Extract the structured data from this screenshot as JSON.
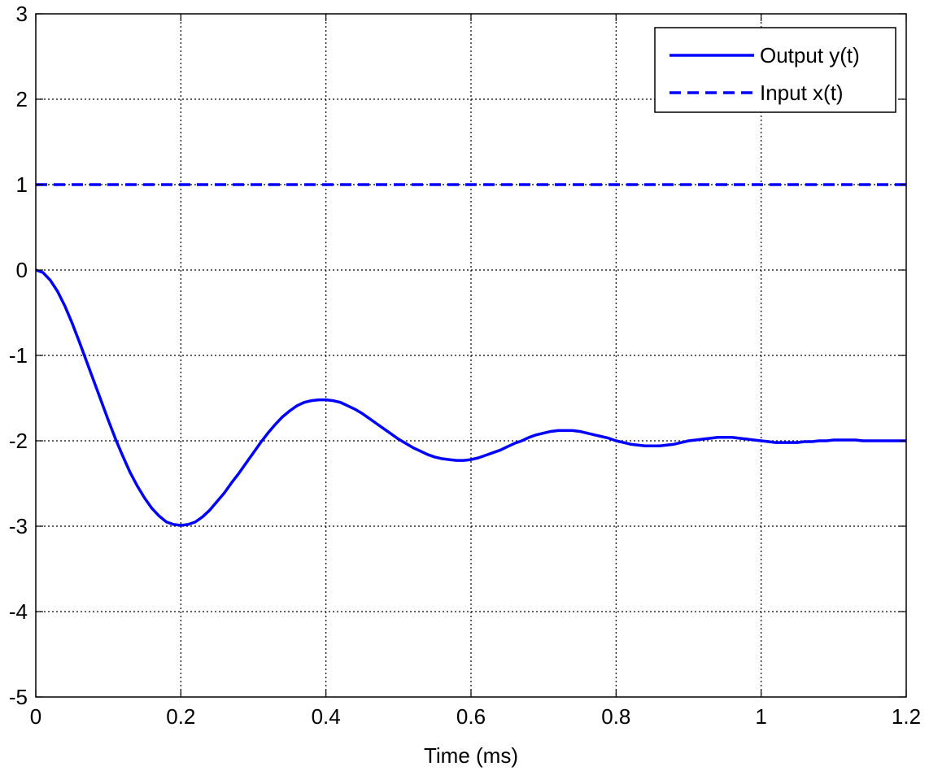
{
  "chart_data": {
    "type": "line",
    "title": "",
    "xlabel": "Time (ms)",
    "ylabel": "",
    "xlim": [
      0,
      1.2
    ],
    "ylim": [
      -5,
      3
    ],
    "xticks": [
      0,
      0.2,
      0.4,
      0.6,
      0.8,
      1,
      1.2
    ],
    "xtick_labels": [
      "0",
      "0.2",
      "0.4",
      "0.6",
      "0.8",
      "1",
      "1.2"
    ],
    "yticks": [
      -5,
      -4,
      -3,
      -2,
      -1,
      0,
      1,
      2,
      3
    ],
    "ytick_labels": [
      "-5",
      "-4",
      "-3",
      "-2",
      "-1",
      "0",
      "1",
      "2",
      "3"
    ],
    "grid": true,
    "legend_position": "top-right",
    "series": [
      {
        "name": "Output y(t)",
        "color": "#0000ff",
        "style": "solid",
        "x": [
          0,
          0.01,
          0.02,
          0.03,
          0.04,
          0.05,
          0.06,
          0.07,
          0.08,
          0.09,
          0.1,
          0.11,
          0.12,
          0.13,
          0.14,
          0.15,
          0.16,
          0.17,
          0.18,
          0.19,
          0.2,
          0.21,
          0.22,
          0.23,
          0.24,
          0.25,
          0.26,
          0.27,
          0.28,
          0.29,
          0.3,
          0.31,
          0.32,
          0.33,
          0.34,
          0.35,
          0.36,
          0.37,
          0.38,
          0.39,
          0.4,
          0.41,
          0.42,
          0.43,
          0.44,
          0.45,
          0.46,
          0.47,
          0.48,
          0.49,
          0.5,
          0.51,
          0.52,
          0.53,
          0.54,
          0.55,
          0.56,
          0.57,
          0.58,
          0.59,
          0.6,
          0.61,
          0.62,
          0.63,
          0.64,
          0.65,
          0.66,
          0.67,
          0.68,
          0.69,
          0.7,
          0.71,
          0.72,
          0.73,
          0.74,
          0.75,
          0.76,
          0.77,
          0.78,
          0.79,
          0.8,
          0.81,
          0.82,
          0.83,
          0.84,
          0.85,
          0.86,
          0.87,
          0.88,
          0.89,
          0.9,
          0.91,
          0.92,
          0.93,
          0.94,
          0.95,
          0.96,
          0.97,
          0.98,
          0.99,
          1,
          1.01,
          1.02,
          1.03,
          1.04,
          1.05,
          1.06,
          1.07,
          1.08,
          1.09,
          1.1,
          1.11,
          1.12,
          1.13,
          1.14,
          1.15,
          1.16,
          1.17,
          1.18,
          1.19,
          1.2
        ],
        "y": [
          0,
          -0.03,
          -0.12,
          -0.25,
          -0.42,
          -0.62,
          -0.84,
          -1.07,
          -1.3,
          -1.53,
          -1.76,
          -1.98,
          -2.18,
          -2.37,
          -2.53,
          -2.67,
          -2.79,
          -2.88,
          -2.95,
          -2.98,
          -2.99,
          -2.98,
          -2.95,
          -2.89,
          -2.81,
          -2.71,
          -2.61,
          -2.49,
          -2.38,
          -2.26,
          -2.14,
          -2.02,
          -1.91,
          -1.81,
          -1.72,
          -1.65,
          -1.59,
          -1.55,
          -1.53,
          -1.52,
          -1.52,
          -1.53,
          -1.55,
          -1.59,
          -1.63,
          -1.68,
          -1.74,
          -1.8,
          -1.86,
          -1.92,
          -1.98,
          -2.03,
          -2.08,
          -2.12,
          -2.16,
          -2.19,
          -2.21,
          -2.22,
          -2.23,
          -2.23,
          -2.22,
          -2.2,
          -2.17,
          -2.14,
          -2.11,
          -2.07,
          -2.03,
          -2.0,
          -1.96,
          -1.93,
          -1.91,
          -1.89,
          -1.88,
          -1.88,
          -1.88,
          -1.89,
          -1.91,
          -1.93,
          -1.95,
          -1.97,
          -2.0,
          -2.02,
          -2.04,
          -2.05,
          -2.06,
          -2.06,
          -2.06,
          -2.05,
          -2.04,
          -2.02,
          -2.0,
          -1.99,
          -1.98,
          -1.97,
          -1.96,
          -1.96,
          -1.96,
          -1.97,
          -1.98,
          -1.99,
          -2.0,
          -2.01,
          -2.02,
          -2.02,
          -2.02,
          -2.02,
          -2.01,
          -2.01,
          -2.0,
          -2.0,
          -1.99,
          -1.99,
          -1.99,
          -1.99,
          -2.0,
          -2.0,
          -2.0,
          -2.0,
          -2.0,
          -2.0,
          -2.0
        ]
      },
      {
        "name": "Input x(t)",
        "color": "#0000ff",
        "style": "dashed",
        "x": [
          0,
          1.2
        ],
        "y": [
          1,
          1
        ]
      }
    ]
  }
}
